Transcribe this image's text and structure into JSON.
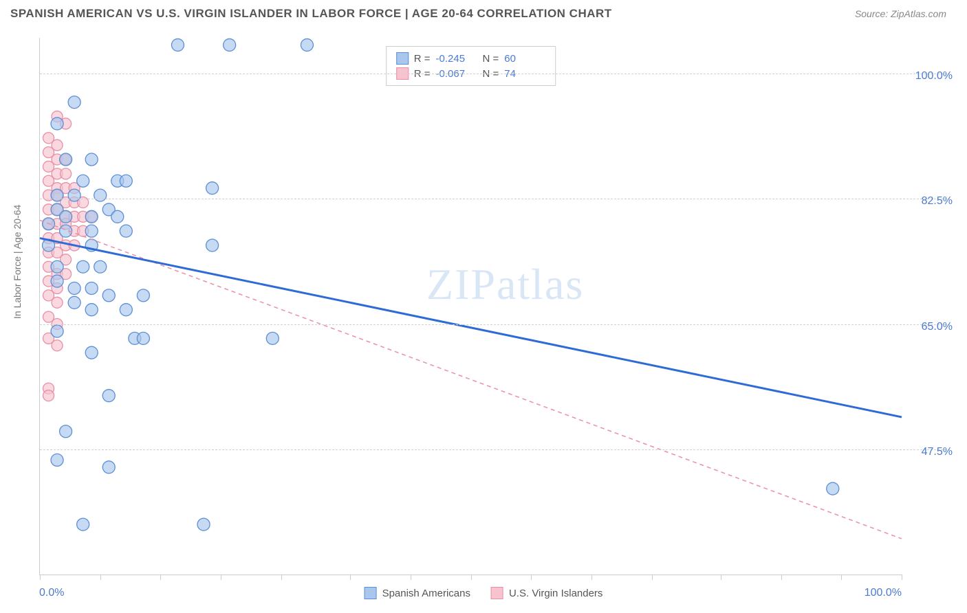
{
  "header": {
    "title": "SPANISH AMERICAN VS U.S. VIRGIN ISLANDER IN LABOR FORCE | AGE 20-64 CORRELATION CHART",
    "source_label": "Source: ZipAtlas.com"
  },
  "chart": {
    "type": "scatter",
    "ylabel": "In Labor Force | Age 20-64",
    "xlim": [
      0,
      100
    ],
    "ylim": [
      30,
      105
    ],
    "x_ticks_labels": {
      "min": "0.0%",
      "max": "100.0%"
    },
    "y_ticks": [
      {
        "value": 47.5,
        "label": "47.5%"
      },
      {
        "value": 65.0,
        "label": "65.0%"
      },
      {
        "value": 82.5,
        "label": "82.5%"
      },
      {
        "value": 100.0,
        "label": "100.0%"
      }
    ],
    "x_minor_ticks": [
      0,
      7,
      14,
      21,
      28,
      36,
      43,
      50,
      57,
      64,
      71,
      79,
      86,
      93,
      100
    ],
    "grid_color": "#d7d7d7",
    "axis_color": "#cccccc",
    "background_color": "#ffffff",
    "tick_label_color": "#4a7bd0",
    "label_fontsize": 14,
    "tick_fontsize": 16,
    "series": [
      {
        "name": "Spanish Americans",
        "marker_fill": "#a9c6ec",
        "marker_stroke": "#5b8fd6",
        "marker_radius": 9,
        "marker_opacity": 0.65,
        "trend_color": "#2e6bd6",
        "trend_width": 3,
        "trend_dash": "none",
        "trend_line": {
          "x1": 0,
          "y1": 77,
          "x2": 100,
          "y2": 52
        },
        "R": "-0.245",
        "N": "60",
        "points": [
          [
            16,
            104
          ],
          [
            22,
            104
          ],
          [
            31,
            104
          ],
          [
            4,
            96
          ],
          [
            2,
            93
          ],
          [
            3,
            88
          ],
          [
            6,
            88
          ],
          [
            5,
            85
          ],
          [
            9,
            85
          ],
          [
            10,
            85
          ],
          [
            20,
            84
          ],
          [
            2,
            83
          ],
          [
            4,
            83
          ],
          [
            7,
            83
          ],
          [
            2,
            81
          ],
          [
            6,
            80
          ],
          [
            8,
            81
          ],
          [
            3,
            80
          ],
          [
            9,
            80
          ],
          [
            1,
            79
          ],
          [
            3,
            78
          ],
          [
            6,
            78
          ],
          [
            10,
            78
          ],
          [
            1,
            76
          ],
          [
            6,
            76
          ],
          [
            20,
            76
          ],
          [
            2,
            73
          ],
          [
            5,
            73
          ],
          [
            7,
            73
          ],
          [
            2,
            71
          ],
          [
            4,
            70
          ],
          [
            6,
            70
          ],
          [
            8,
            69
          ],
          [
            4,
            68
          ],
          [
            6,
            67
          ],
          [
            10,
            67
          ],
          [
            12,
            69
          ],
          [
            2,
            64
          ],
          [
            11,
            63
          ],
          [
            12,
            63
          ],
          [
            27,
            63
          ],
          [
            6,
            61
          ],
          [
            8,
            55
          ],
          [
            3,
            50
          ],
          [
            2,
            46
          ],
          [
            8,
            45
          ],
          [
            92,
            42
          ],
          [
            5,
            37
          ],
          [
            19,
            37
          ]
        ]
      },
      {
        "name": "U.S. Virgin Islanders",
        "marker_fill": "#f6c3cf",
        "marker_stroke": "#e98fa6",
        "marker_radius": 8,
        "marker_opacity": 0.65,
        "trend_color": "#e98fa6",
        "trend_width": 1.5,
        "trend_dash": "6,5",
        "trend_line": {
          "x1": 0,
          "y1": 79.5,
          "x2": 100,
          "y2": 35
        },
        "R": "-0.067",
        "N": "74",
        "points": [
          [
            2,
            94
          ],
          [
            3,
            93
          ],
          [
            1,
            91
          ],
          [
            2,
            90
          ],
          [
            1,
            89
          ],
          [
            2,
            88
          ],
          [
            3,
            88
          ],
          [
            1,
            87
          ],
          [
            2,
            86
          ],
          [
            3,
            86
          ],
          [
            1,
            85
          ],
          [
            2,
            84
          ],
          [
            3,
            84
          ],
          [
            4,
            84
          ],
          [
            1,
            83
          ],
          [
            2,
            83
          ],
          [
            3,
            82
          ],
          [
            4,
            82
          ],
          [
            5,
            82
          ],
          [
            1,
            81
          ],
          [
            2,
            81
          ],
          [
            3,
            80
          ],
          [
            4,
            80
          ],
          [
            5,
            80
          ],
          [
            6,
            80
          ],
          [
            1,
            79
          ],
          [
            2,
            79
          ],
          [
            3,
            79
          ],
          [
            4,
            78
          ],
          [
            5,
            78
          ],
          [
            1,
            77
          ],
          [
            2,
            77
          ],
          [
            3,
            76
          ],
          [
            4,
            76
          ],
          [
            1,
            75
          ],
          [
            2,
            75
          ],
          [
            3,
            74
          ],
          [
            1,
            73
          ],
          [
            2,
            72
          ],
          [
            3,
            72
          ],
          [
            1,
            71
          ],
          [
            2,
            70
          ],
          [
            1,
            69
          ],
          [
            2,
            68
          ],
          [
            1,
            66
          ],
          [
            2,
            65
          ],
          [
            1,
            63
          ],
          [
            2,
            62
          ],
          [
            1,
            56
          ],
          [
            1,
            55
          ]
        ]
      }
    ],
    "top_legend": {
      "rows": [
        {
          "swatch_fill": "#a9c6ec",
          "swatch_stroke": "#5b8fd6",
          "r_label": "R =",
          "r_val": "-0.245",
          "n_label": "N =",
          "n_val": "60"
        },
        {
          "swatch_fill": "#f6c3cf",
          "swatch_stroke": "#e98fa6",
          "r_label": "R =",
          "r_val": "-0.067",
          "n_label": "N =",
          "n_val": "74"
        }
      ]
    },
    "bottom_legend": [
      {
        "swatch_fill": "#a9c6ec",
        "swatch_stroke": "#5b8fd6",
        "label": "Spanish Americans"
      },
      {
        "swatch_fill": "#f6c3cf",
        "swatch_stroke": "#e98fa6",
        "label": "U.S. Virgin Islanders"
      }
    ],
    "watermark": {
      "text_bold": "ZIP",
      "text_thin": "atlas",
      "color": "#cfe0f5",
      "fontsize": 64
    }
  }
}
